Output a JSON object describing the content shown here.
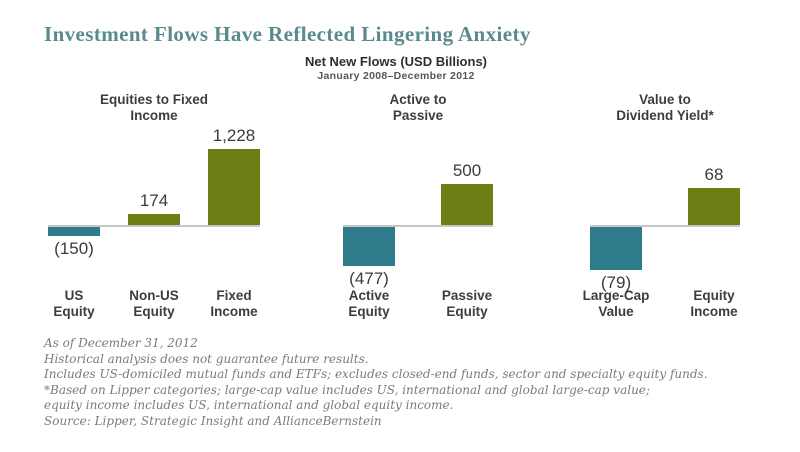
{
  "page_title": "Investment Flows Have Reflected Lingering Anxiety",
  "subtitle": {
    "line1": "Net New Flows (USD Billions)",
    "line2": "January 2008–December 2012"
  },
  "colors": {
    "title_text": "#578b8d",
    "bar_positive": "#6c7f14",
    "bar_negative": "#2e7b8b",
    "baseline": "#c6c6c6",
    "label_text": "#3d3d3d",
    "footnote_text": "#7b7b7b"
  },
  "chart_data": {
    "type": "bar",
    "title": "Net New Flows (USD Billions)",
    "subtitle": "January 2008–December 2012",
    "unit": "USD Billions",
    "grid": false,
    "legend": false,
    "bar_colors": {
      "positive": "#6c7f14",
      "negative": "#2e7b8b"
    },
    "groups": [
      {
        "title_lines": [
          "Equities to Fixed",
          "Income"
        ],
        "bars": [
          {
            "category_lines": [
              "US",
              "Equity"
            ],
            "value": -150,
            "display": "(150)"
          },
          {
            "category_lines": [
              "Non-US",
              "Equity"
            ],
            "value": 174,
            "display": "174"
          },
          {
            "category_lines": [
              "Fixed",
              "Income"
            ],
            "value": 1228,
            "display": "1,228"
          }
        ]
      },
      {
        "title_lines": [
          "Active to",
          "Passive"
        ],
        "bars": [
          {
            "category_lines": [
              "Active",
              "Equity"
            ],
            "value": -477,
            "display": "(477)"
          },
          {
            "category_lines": [
              "Passive",
              "Equity"
            ],
            "value": 500,
            "display": "500"
          }
        ]
      },
      {
        "title_lines": [
          "Value to",
          "Dividend Yield*"
        ],
        "bars": [
          {
            "category_lines": [
              "Large-Cap",
              "Value"
            ],
            "value": -79,
            "display": "(79)"
          },
          {
            "category_lines": [
              "Equity",
              "Income"
            ],
            "value": 68,
            "display": "68"
          }
        ]
      }
    ]
  },
  "footnotes": [
    "As of December 31, 2012",
    "Historical analysis does not guarantee future results.",
    "Includes US-domiciled mutual funds and ETFs; excludes closed-end funds, sector and specialty equity funds.",
    "*Based on Lipper categories; large-cap value includes US, international and global large-cap value;",
    "equity income includes US, international and global equity income.",
    "Source: Lipper, Strategic Insight and AllianceBernstein"
  ]
}
